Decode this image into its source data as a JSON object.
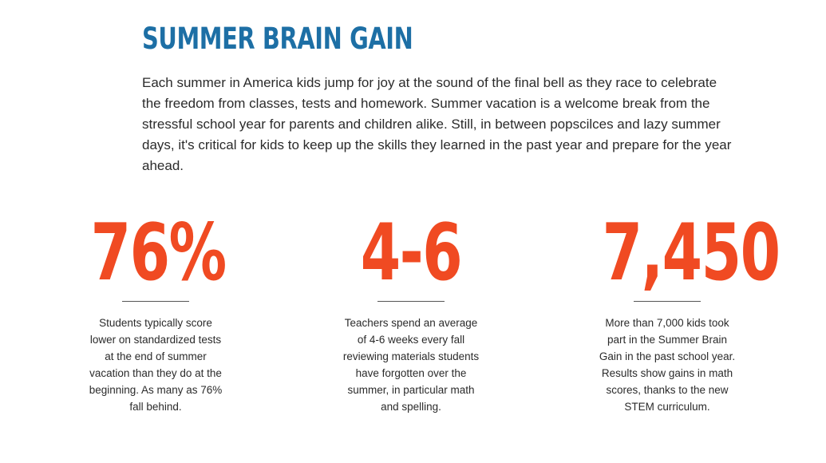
{
  "header": {
    "title": "SUMMER BRAIN GAIN"
  },
  "intro": {
    "text": "Each summer in America kids jump for joy at the sound of the final bell as they race to celebrate the freedom from classes, tests and homework. Summer vacation is a welcome break from the stressful school year for parents and children alike. Still, in between popscilces and lazy summer days, it's critical for kids to keep up the skills they learned in the past year and prepare for the year ahead."
  },
  "stats": [
    {
      "number": "76%",
      "description": "Students typically score lower on standardized tests at the end of summer vacation than they do at the beginning. As many as 76% fall behind."
    },
    {
      "number": "4-6",
      "description": "Teachers spend an average of 4-6 weeks every fall reviewing materials students have forgotten over the summer, in particular math and spelling."
    },
    {
      "number": "7,450",
      "description": "More than 7,000 kids took part in the Summer Brain Gain in the past school year. Results show gains in math scores, thanks to the new STEM curriculum."
    }
  ],
  "colors": {
    "title": "#1d6fa5",
    "stat_number": "#f04a22",
    "body_text": "#2b2b2b"
  }
}
